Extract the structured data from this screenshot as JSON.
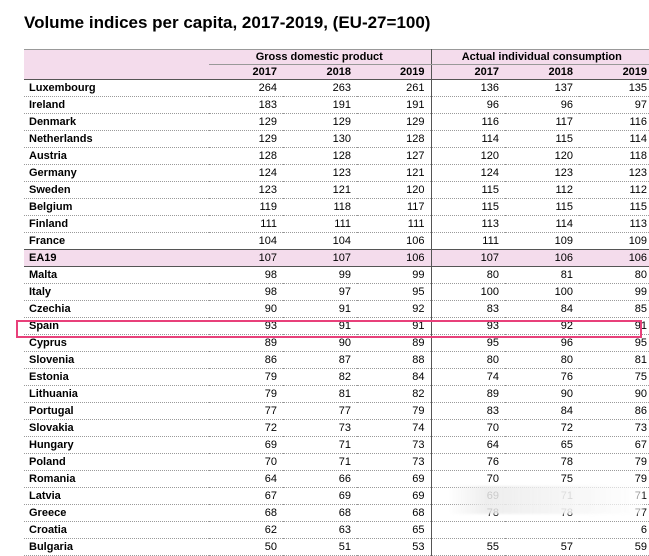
{
  "title": "Volume indices per capita, 2017-2019, (EU-27=100)",
  "groups": [
    "Gross domestic product",
    "Actual individual consumption"
  ],
  "years": [
    "2017",
    "2018",
    "2019",
    "2017",
    "2018",
    "2019"
  ],
  "rows": [
    {
      "country": "Luxembourg",
      "values": [
        "264",
        "263",
        "261",
        "136",
        "137",
        "135"
      ]
    },
    {
      "country": "Ireland",
      "values": [
        "183",
        "191",
        "191",
        "96",
        "96",
        "97"
      ]
    },
    {
      "country": "Denmark",
      "values": [
        "129",
        "129",
        "129",
        "116",
        "117",
        "116"
      ]
    },
    {
      "country": "Netherlands",
      "values": [
        "129",
        "130",
        "128",
        "114",
        "115",
        "114"
      ]
    },
    {
      "country": "Austria",
      "values": [
        "128",
        "128",
        "127",
        "120",
        "120",
        "118"
      ]
    },
    {
      "country": "Germany",
      "values": [
        "124",
        "123",
        "121",
        "124",
        "123",
        "123"
      ]
    },
    {
      "country": "Sweden",
      "values": [
        "123",
        "121",
        "120",
        "115",
        "112",
        "112"
      ]
    },
    {
      "country": "Belgium",
      "values": [
        "119",
        "118",
        "117",
        "115",
        "115",
        "115"
      ]
    },
    {
      "country": "Finland",
      "values": [
        "111",
        "111",
        "111",
        "113",
        "114",
        "113"
      ]
    },
    {
      "country": "France",
      "values": [
        "104",
        "104",
        "106",
        "111",
        "109",
        "109"
      ]
    },
    {
      "country": "EA19",
      "values": [
        "107",
        "107",
        "106",
        "107",
        "106",
        "106"
      ]
    },
    {
      "country": "Malta",
      "values": [
        "98",
        "99",
        "99",
        "80",
        "81",
        "80"
      ]
    },
    {
      "country": "Italy",
      "values": [
        "98",
        "97",
        "95",
        "100",
        "100",
        "99"
      ]
    },
    {
      "country": "Czechia",
      "values": [
        "90",
        "91",
        "92",
        "83",
        "84",
        "85"
      ]
    },
    {
      "country": "Spain",
      "values": [
        "93",
        "91",
        "91",
        "93",
        "92",
        "91"
      ]
    },
    {
      "country": "Cyprus",
      "values": [
        "89",
        "90",
        "89",
        "95",
        "96",
        "95"
      ]
    },
    {
      "country": "Slovenia",
      "values": [
        "86",
        "87",
        "88",
        "80",
        "80",
        "81"
      ]
    },
    {
      "country": "Estonia",
      "values": [
        "79",
        "82",
        "84",
        "74",
        "76",
        "75"
      ]
    },
    {
      "country": "Lithuania",
      "values": [
        "79",
        "81",
        "82",
        "89",
        "90",
        "90"
      ]
    },
    {
      "country": "Portugal",
      "values": [
        "77",
        "77",
        "79",
        "83",
        "84",
        "86"
      ]
    },
    {
      "country": "Slovakia",
      "values": [
        "72",
        "73",
        "74",
        "70",
        "72",
        "73"
      ]
    },
    {
      "country": "Hungary",
      "values": [
        "69",
        "71",
        "73",
        "64",
        "65",
        "67"
      ]
    },
    {
      "country": "Poland",
      "values": [
        "70",
        "71",
        "73",
        "76",
        "78",
        "79"
      ]
    },
    {
      "country": "Romania",
      "values": [
        "64",
        "66",
        "69",
        "70",
        "75",
        "79"
      ]
    },
    {
      "country": "Latvia",
      "values": [
        "67",
        "69",
        "69",
        "69",
        "71",
        "71"
      ]
    },
    {
      "country": "Greece",
      "values": [
        "68",
        "68",
        "68",
        "78",
        "78",
        "77"
      ]
    },
    {
      "country": "Croatia",
      "values": [
        "62",
        "63",
        "65",
        "",
        "",
        "6"
      ]
    },
    {
      "country": "Bulgaria",
      "values": [
        "50",
        "51",
        "53",
        "55",
        "57",
        "59"
      ]
    }
  ],
  "colors": {
    "header_bg": "#f4dcec",
    "highlight_border": "#e8407a"
  }
}
